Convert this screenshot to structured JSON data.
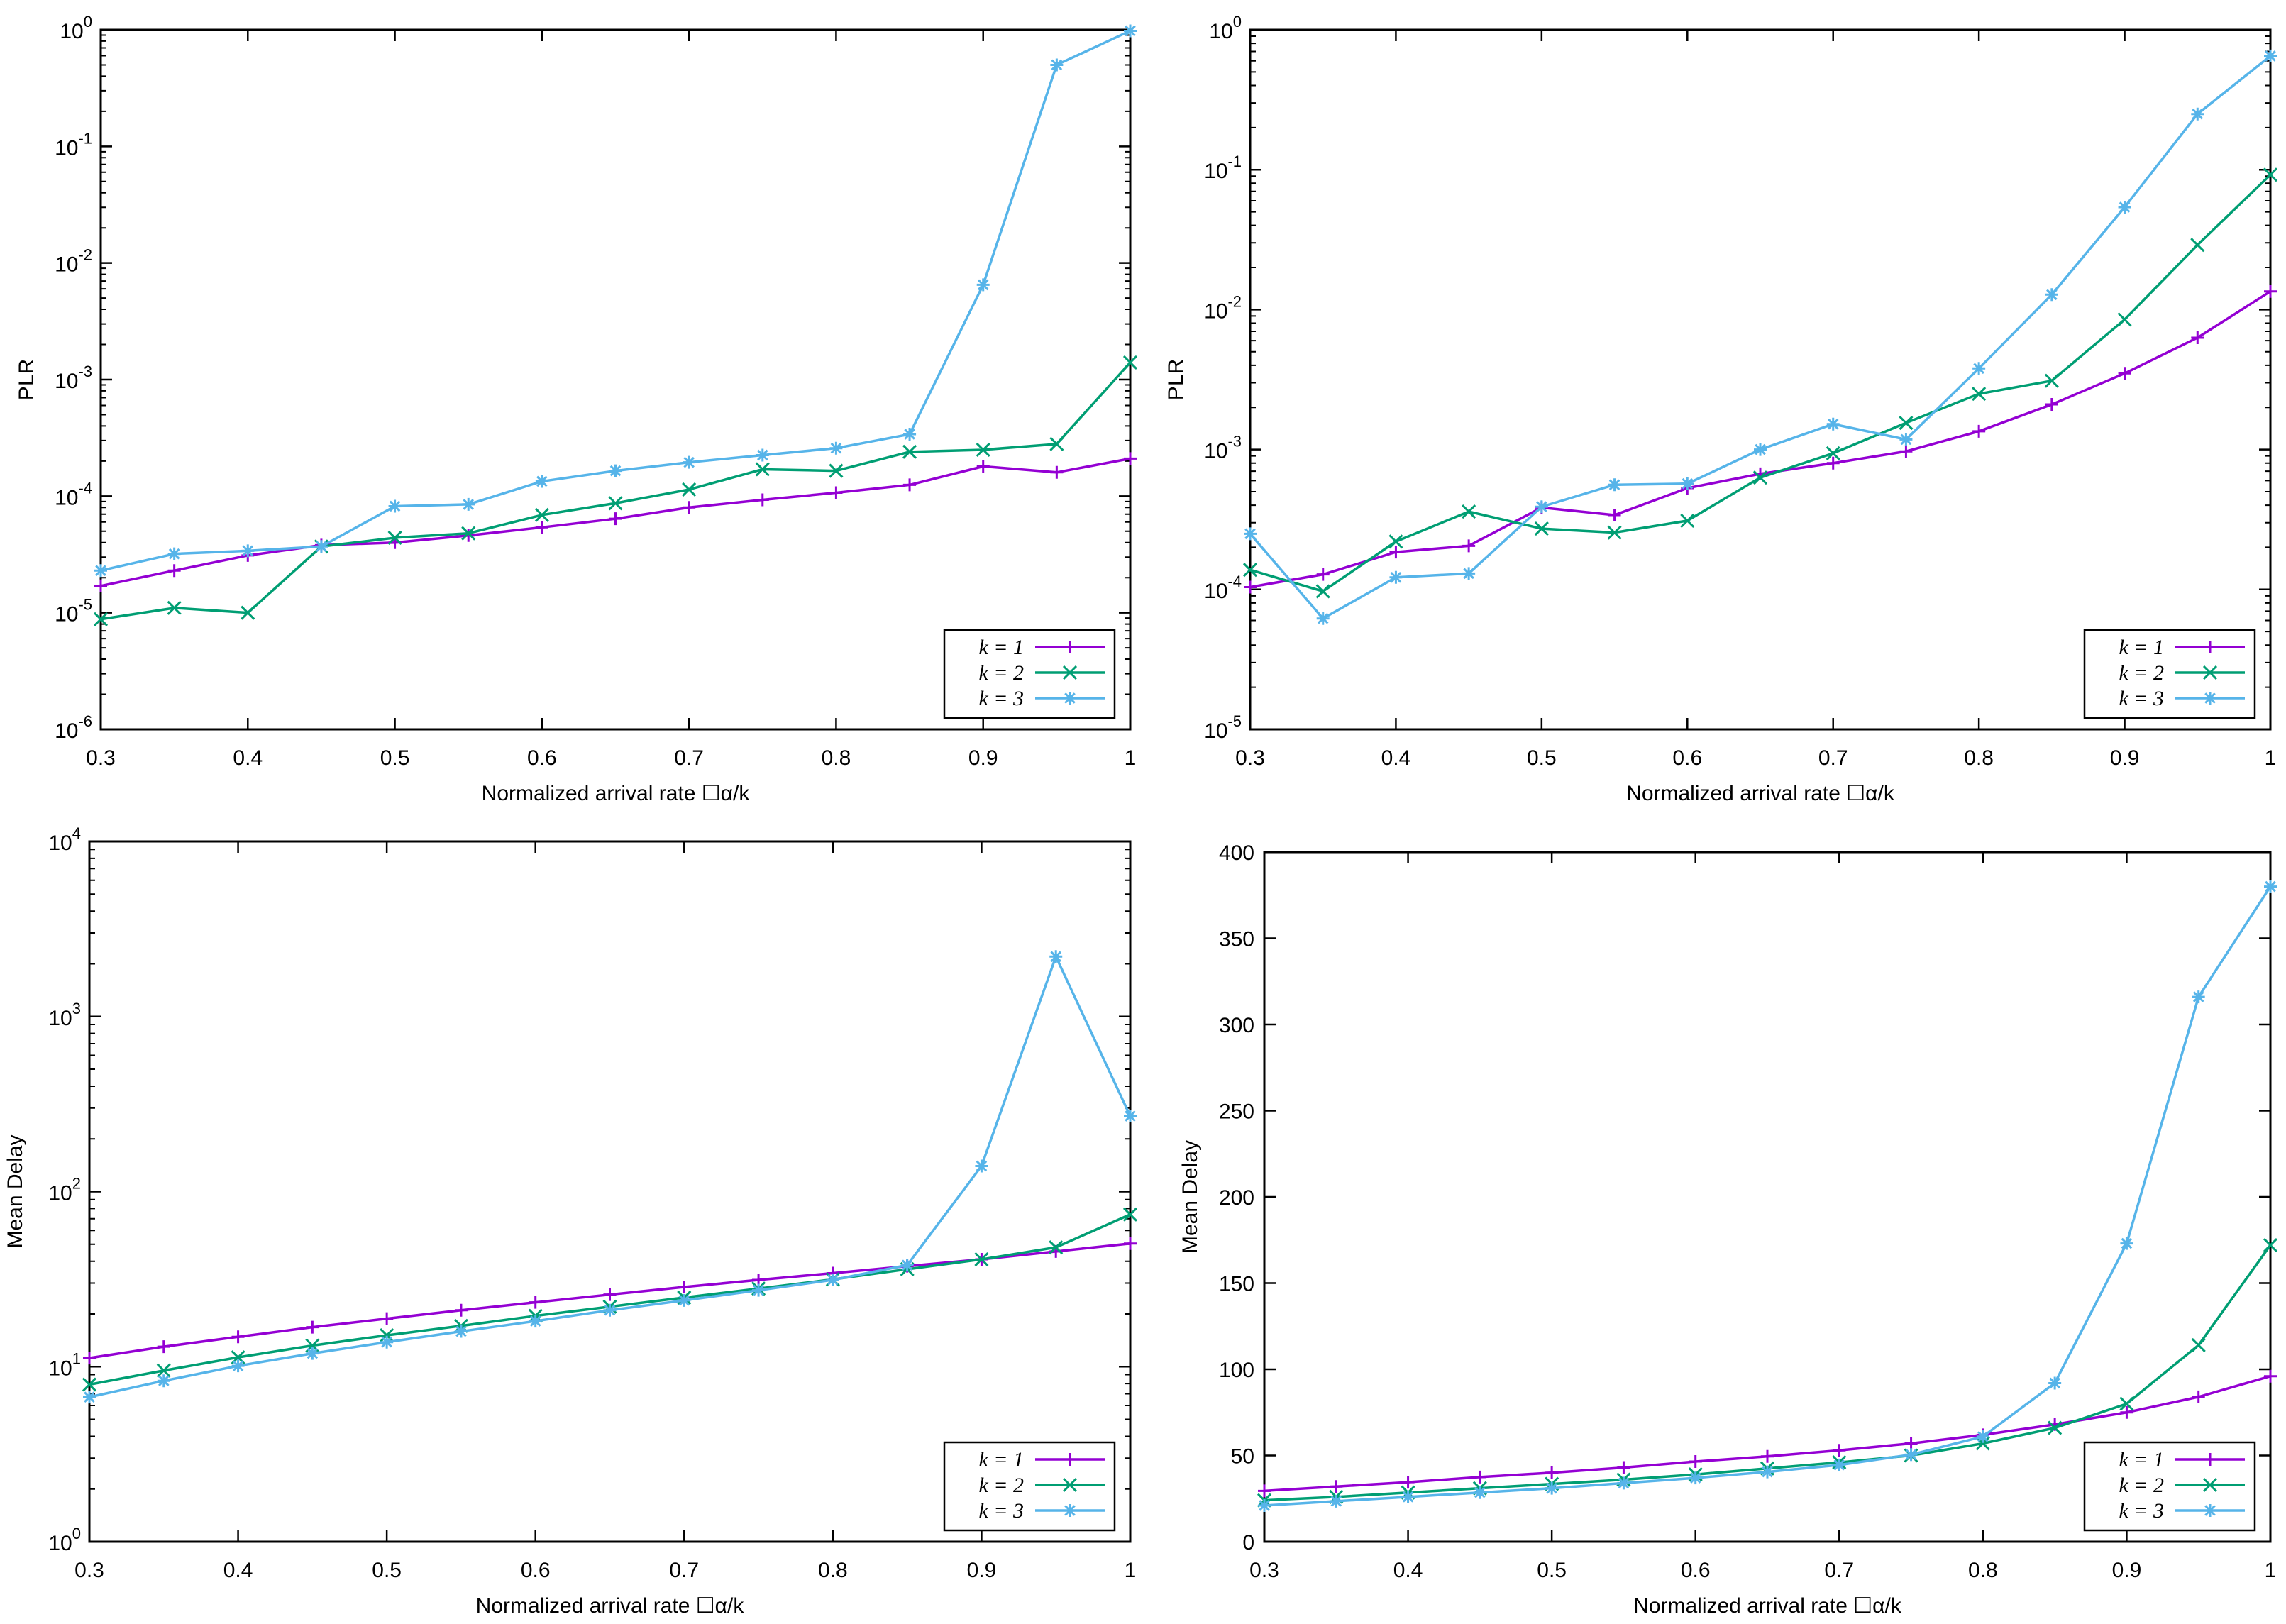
{
  "chart_data": [
    {
      "type": "line",
      "scale": "log",
      "xlabel": "Normalized arrival rate ☐α/k",
      "ylabel": "PLR",
      "xlim": [
        0.3,
        1.0
      ],
      "ylim_exp": [
        -6,
        0
      ],
      "xticks": [
        "0.3",
        "0.4",
        "0.5",
        "0.6",
        "0.7",
        "0.8",
        "0.9",
        "1"
      ],
      "yticks": [
        {
          "base": "10",
          "exp": "-6"
        },
        {
          "base": "10",
          "exp": "-5"
        },
        {
          "base": "10",
          "exp": "-4"
        },
        {
          "base": "10",
          "exp": "-3"
        },
        {
          "base": "10",
          "exp": "-2"
        },
        {
          "base": "10",
          "exp": "-1"
        },
        {
          "base": "10",
          "exp": "0"
        }
      ],
      "x": [
        0.3,
        0.35,
        0.4,
        0.45,
        0.5,
        0.55,
        0.6,
        0.65,
        0.7,
        0.75,
        0.8,
        0.85,
        0.9,
        0.95,
        1.0
      ],
      "series": [
        {
          "name": "k = 1",
          "color": "#9400d3",
          "marker": "plus",
          "values": [
            1.7e-05,
            2.3e-05,
            3.1e-05,
            3.8e-05,
            4e-05,
            4.6e-05,
            5.4e-05,
            6.4e-05,
            8e-05,
            9.3e-05,
            0.000107,
            0.000125,
            0.00018,
            0.00016,
            0.00021
          ]
        },
        {
          "name": "k = 2",
          "color": "#009e73",
          "marker": "x",
          "values": [
            8.8e-06,
            1.1e-05,
            1e-05,
            3.7e-05,
            4.4e-05,
            4.8e-05,
            6.9e-05,
            8.7e-05,
            0.000114,
            0.00017,
            0.000165,
            0.00024,
            0.00025,
            0.00028,
            0.0014
          ]
        },
        {
          "name": "k = 3",
          "color": "#56b4e9",
          "marker": "star",
          "values": [
            2.3e-05,
            3.2e-05,
            3.4e-05,
            3.7e-05,
            8.2e-05,
            8.5e-05,
            0.000134,
            0.000165,
            0.000195,
            0.000225,
            0.000258,
            0.00034,
            0.0065,
            0.5,
            0.98
          ]
        }
      ]
    },
    {
      "type": "line",
      "scale": "log",
      "xlabel": "Normalized arrival rate ☐α/k",
      "ylabel": "PLR",
      "xlim": [
        0.3,
        1.0
      ],
      "ylim_exp": [
        -5,
        0
      ],
      "xticks": [
        "0.3",
        "0.4",
        "0.5",
        "0.6",
        "0.7",
        "0.8",
        "0.9",
        "1"
      ],
      "yticks": [
        {
          "base": "10",
          "exp": "-5"
        },
        {
          "base": "10",
          "exp": "-4"
        },
        {
          "base": "10",
          "exp": "-3"
        },
        {
          "base": "10",
          "exp": "-2"
        },
        {
          "base": "10",
          "exp": "-1"
        },
        {
          "base": "10",
          "exp": "0"
        }
      ],
      "x": [
        0.3,
        0.35,
        0.4,
        0.45,
        0.5,
        0.55,
        0.6,
        0.65,
        0.7,
        0.75,
        0.8,
        0.85,
        0.9,
        0.95,
        1.0
      ],
      "series": [
        {
          "name": "k = 1",
          "color": "#9400d3",
          "marker": "plus",
          "values": [
            0.000104,
            0.000128,
            0.000185,
            0.000205,
            0.000385,
            0.00034,
            0.00053,
            0.00067,
            0.0008,
            0.00097,
            0.00135,
            0.0021,
            0.0035,
            0.0063,
            0.0135
          ]
        },
        {
          "name": "k = 2",
          "color": "#009e73",
          "marker": "x",
          "values": [
            0.000138,
            9.7e-05,
            0.00022,
            0.00036,
            0.000272,
            0.000255,
            0.00031,
            0.00063,
            0.00094,
            0.00155,
            0.0025,
            0.0031,
            0.0085,
            0.029,
            0.092
          ]
        },
        {
          "name": "k = 3",
          "color": "#56b4e9",
          "marker": "star",
          "values": [
            0.00025,
            6.2e-05,
            0.000122,
            0.00013,
            0.00039,
            0.00056,
            0.00057,
            0.001,
            0.00152,
            0.00118,
            0.0038,
            0.0128,
            0.054,
            0.25,
            0.65
          ]
        }
      ]
    },
    {
      "type": "line",
      "scale": "log",
      "xlabel": "Normalized arrival rate ☐α/k",
      "ylabel": "Mean Delay",
      "xlim": [
        0.3,
        1.0
      ],
      "ylim_exp": [
        0,
        4
      ],
      "xticks": [
        "0.3",
        "0.4",
        "0.5",
        "0.6",
        "0.7",
        "0.8",
        "0.9",
        "1"
      ],
      "yticks": [
        {
          "base": "10",
          "exp": "0"
        },
        {
          "base": "10",
          "exp": "1"
        },
        {
          "base": "10",
          "exp": "2"
        },
        {
          "base": "10",
          "exp": "3"
        },
        {
          "base": "10",
          "exp": "4"
        }
      ],
      "x": [
        0.3,
        0.35,
        0.4,
        0.45,
        0.5,
        0.55,
        0.6,
        0.65,
        0.7,
        0.75,
        0.8,
        0.85,
        0.9,
        0.95,
        1.0
      ],
      "series": [
        {
          "name": "k = 1",
          "color": "#9400d3",
          "marker": "plus",
          "values": [
            11.2,
            13,
            14.8,
            16.8,
            18.8,
            21,
            23.3,
            25.8,
            28.5,
            31.3,
            34.2,
            37.5,
            41,
            45.5,
            50.5
          ]
        },
        {
          "name": "k = 2",
          "color": "#009e73",
          "marker": "x",
          "values": [
            7.9,
            9.5,
            11.3,
            13.2,
            15.1,
            17.1,
            19.5,
            22,
            24.8,
            27.9,
            31.5,
            36,
            41,
            48,
            74
          ]
        },
        {
          "name": "k = 3",
          "color": "#56b4e9",
          "marker": "star",
          "values": [
            6.7,
            8.3,
            10.1,
            11.9,
            13.8,
            15.9,
            18.2,
            21,
            23.9,
            27.3,
            31.3,
            38,
            140,
            2200,
            270
          ]
        }
      ]
    },
    {
      "type": "line",
      "scale": "linear",
      "xlabel": "Normalized arrival rate ☐α/k",
      "ylabel": "Mean Delay",
      "xlim": [
        0.3,
        1.0
      ],
      "ylim": [
        0,
        400
      ],
      "xticks": [
        "0.3",
        "0.4",
        "0.5",
        "0.6",
        "0.7",
        "0.8",
        "0.9",
        "1"
      ],
      "yticks": [
        "0",
        "50",
        "100",
        "150",
        "200",
        "250",
        "300",
        "350",
        "400"
      ],
      "x": [
        0.3,
        0.35,
        0.4,
        0.45,
        0.5,
        0.55,
        0.6,
        0.65,
        0.7,
        0.75,
        0.8,
        0.85,
        0.9,
        0.95,
        1.0
      ],
      "series": [
        {
          "name": "k = 1",
          "color": "#9400d3",
          "marker": "plus",
          "values": [
            29.5,
            32,
            34.5,
            37.5,
            40,
            43,
            46.5,
            49.5,
            53,
            57,
            62,
            68,
            75,
            84,
            96
          ]
        },
        {
          "name": "k = 2",
          "color": "#009e73",
          "marker": "x",
          "values": [
            24,
            26,
            28.5,
            31,
            33.5,
            36,
            39,
            42.5,
            46,
            50,
            57,
            66,
            80,
            114,
            172
          ]
        },
        {
          "name": "k = 3",
          "color": "#56b4e9",
          "marker": "star",
          "values": [
            21,
            23.5,
            26,
            28.5,
            31,
            34,
            37,
            40.5,
            44.5,
            50.5,
            61,
            92,
            173,
            316,
            380
          ]
        }
      ]
    }
  ]
}
